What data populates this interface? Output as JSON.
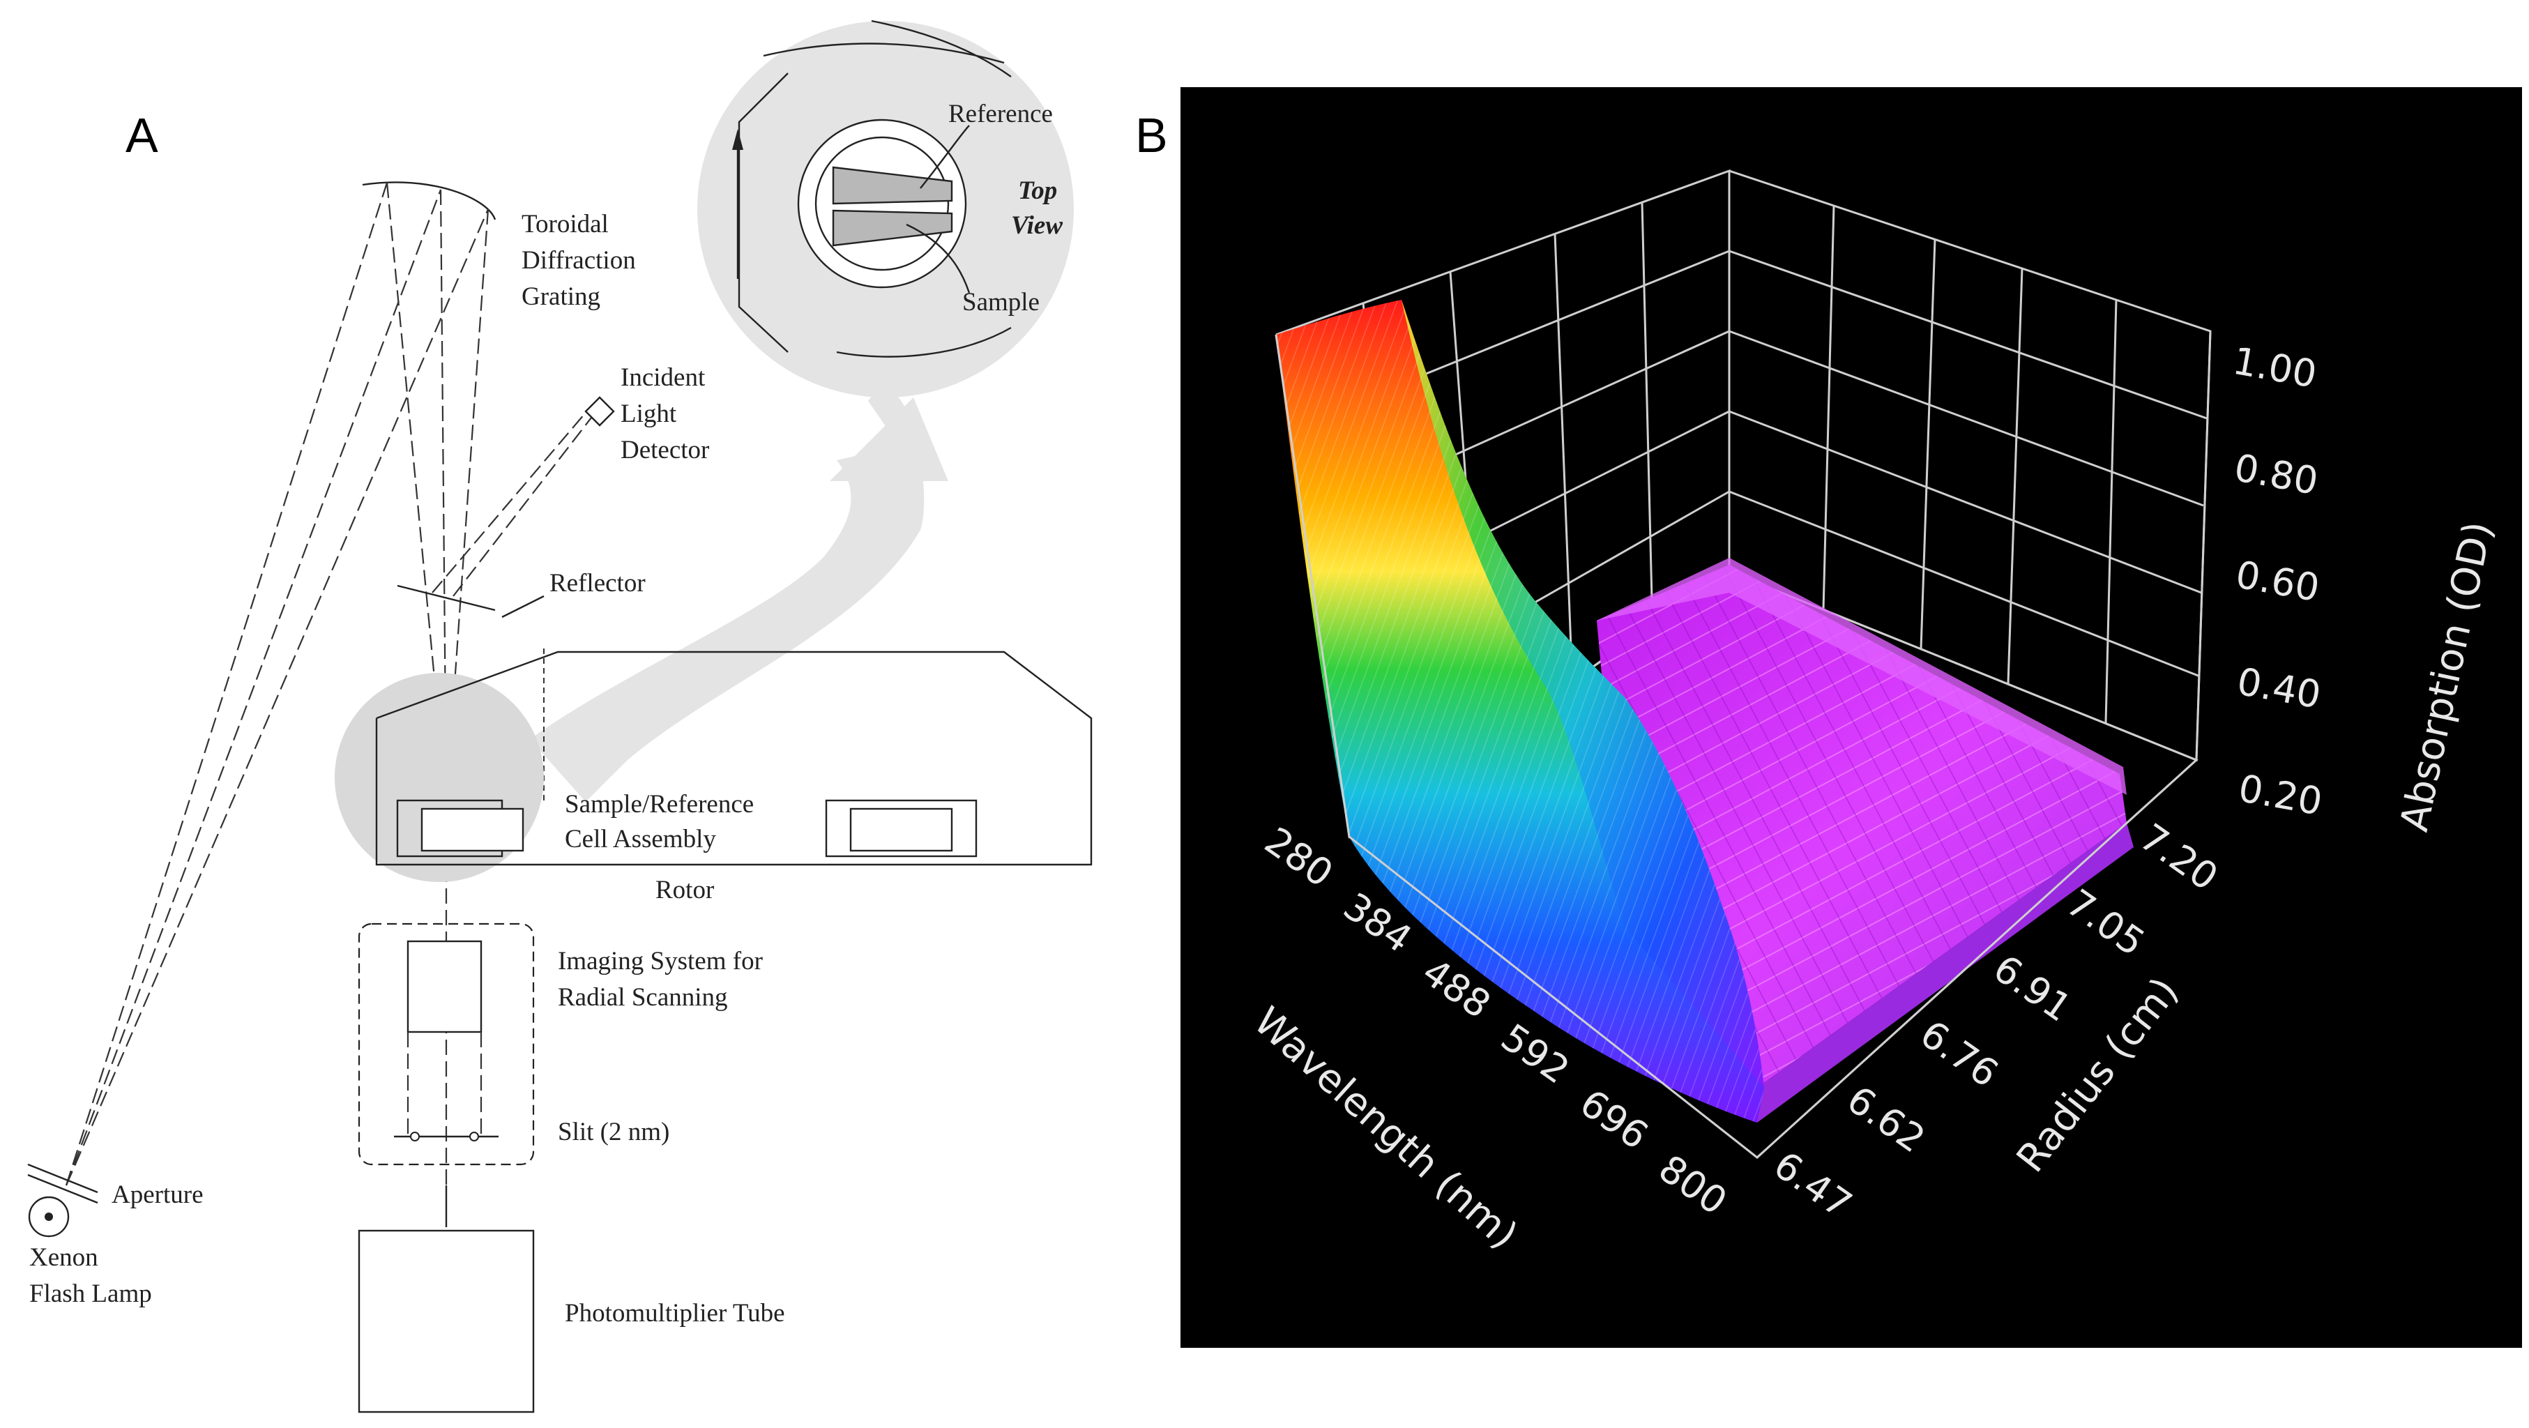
{
  "panel_a": {
    "letter": "A",
    "labels": {
      "grating": [
        "Toroidal",
        "Diffraction",
        "Grating"
      ],
      "detector": [
        "Incident",
        "Light",
        "Detector"
      ],
      "reflector": "Reflector",
      "cell_assembly": [
        "Sample/Reference",
        "Cell Assembly"
      ],
      "rotor": "Rotor",
      "imaging": [
        "Imaging System for",
        "Radial Scanning"
      ],
      "slit": "Slit (2 nm)",
      "aperture": "Aperture",
      "lamp": [
        "Xenon",
        "Flash Lamp"
      ],
      "pmt": "Photomultiplier Tube"
    },
    "inset": {
      "reference": "Reference",
      "sample": "Sample",
      "top_view": [
        "Top",
        "View"
      ]
    }
  },
  "panel_b": {
    "letter": "B",
    "background": "#000000",
    "surface_colors": [
      "#ff1a1a",
      "#ffa000",
      "#ffee33",
      "#20d040",
      "#17c8e8",
      "#1a5cff",
      "#7a1aff",
      "#cc22ff",
      "#e64dff"
    ]
  },
  "chart_data": {
    "type": "surface3d",
    "z_axis": {
      "label": "Absorption (OD)",
      "ticks": [
        "0.20",
        "0.40",
        "0.60",
        "0.80",
        "1.00"
      ]
    },
    "x_axis": {
      "label": "Wavelength (nm)",
      "ticks": [
        "280",
        "384",
        "488",
        "592",
        "696",
        "800"
      ]
    },
    "y_axis": {
      "label": "Radius (cm)",
      "ticks": [
        "6.47",
        "6.62",
        "6.76",
        "6.91",
        "7.05",
        "7.20"
      ]
    }
  }
}
